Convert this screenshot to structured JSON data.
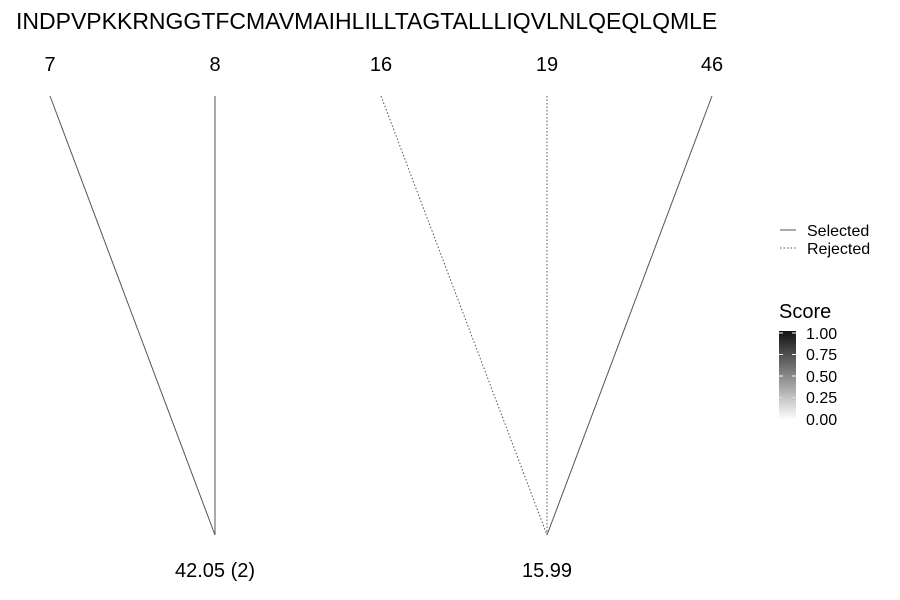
{
  "sequence": "INDPVPKKRNGGTFCMAVMAIHLILLTAGTALLLIQVLNLQEQLQMLE",
  "positions": [
    "7",
    "8",
    "16",
    "19",
    "46"
  ],
  "bottom_nodes": [
    "42.05 (2)",
    "15.99"
  ],
  "connections": [
    {
      "from": 0,
      "to": 0,
      "status": "selected"
    },
    {
      "from": 1,
      "to": 0,
      "status": "selected"
    },
    {
      "from": 2,
      "to": 1,
      "status": "rejected"
    },
    {
      "from": 3,
      "to": 1,
      "status": "rejected"
    },
    {
      "from": 4,
      "to": 1,
      "status": "selected"
    }
  ],
  "legend": {
    "selected": "Selected",
    "rejected": "Rejected"
  },
  "score_scale": {
    "title": "Score",
    "ticks": [
      "1.00",
      "0.75",
      "0.50",
      "0.25",
      "0.00"
    ],
    "colors": {
      "high": "#111111",
      "low": "#ffffff"
    }
  },
  "colors": {
    "line": "#555555"
  }
}
